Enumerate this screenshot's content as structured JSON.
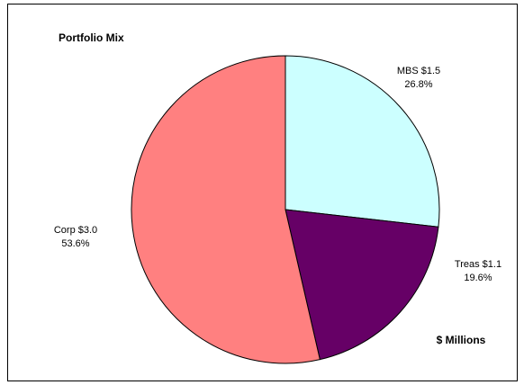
{
  "chart_data": {
    "type": "pie",
    "title": "Portfolio Mix",
    "unit_note": "$ Millions",
    "start_angle_deg": 0,
    "direction": "clockwise",
    "slices": [
      {
        "name": "MBS",
        "value": 1.5,
        "percent": 26.8,
        "color": "#ccffff",
        "label_line1": "MBS $1.5",
        "label_line2": "26.8%"
      },
      {
        "name": "Treas",
        "value": 1.1,
        "percent": 19.6,
        "color": "#660066",
        "label_line1": "Treas $1.1",
        "label_line2": "19.6%"
      },
      {
        "name": "Corp",
        "value": 3.0,
        "percent": 53.6,
        "color": "#ff8080",
        "label_line1": "Corp $3.0",
        "label_line2": "53.6%"
      }
    ]
  }
}
